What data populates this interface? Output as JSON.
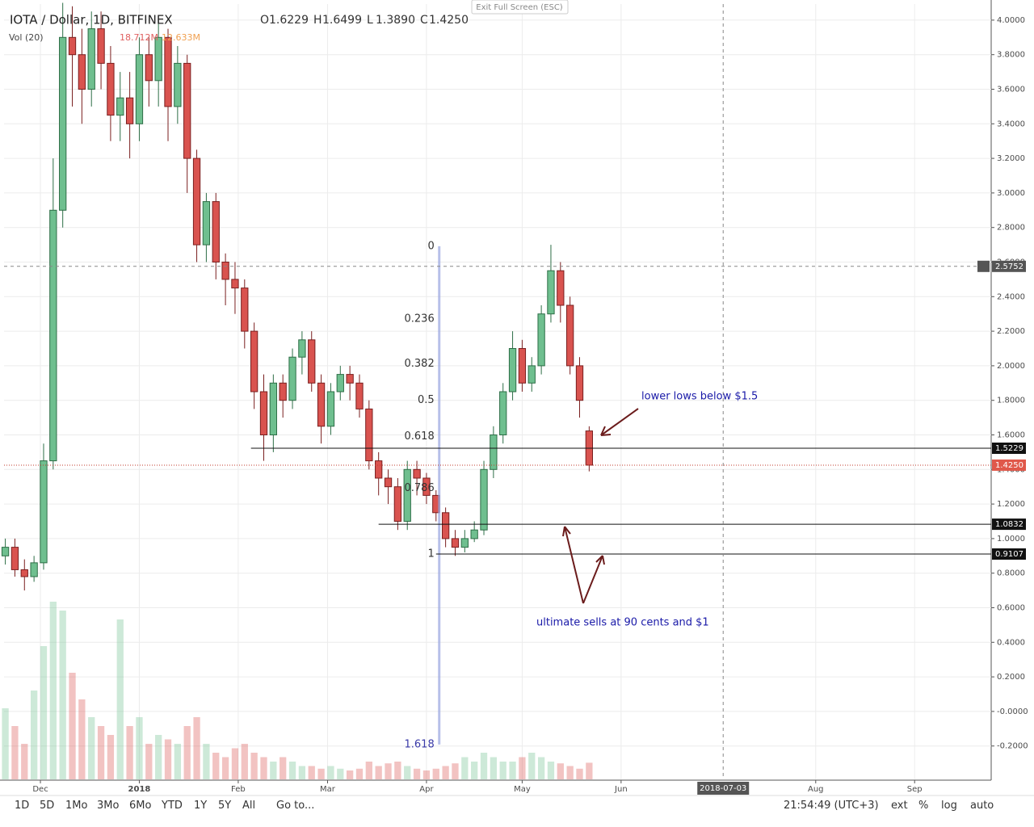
{
  "chart_data": {
    "type": "candlestick",
    "title": "IOTA / Dollar, 1D, BITFINEX",
    "ohlc_header": [
      [
        "O",
        "1.6229"
      ],
      [
        "H",
        "1.6499"
      ],
      [
        "L",
        "1.3890"
      ],
      [
        "C",
        "1.4250"
      ]
    ],
    "volume_title": "Vol (20)",
    "volume_label": "18.712M",
    "volume_ma_label": "12.633M",
    "x": [
      -11,
      -8,
      -5,
      -2,
      1,
      4,
      7,
      10,
      13,
      16,
      19,
      22,
      25,
      28,
      31,
      34,
      37,
      40,
      43,
      46,
      49,
      52,
      55,
      58,
      61,
      64,
      67,
      70,
      73,
      76,
      79,
      82,
      85,
      88,
      91,
      94,
      97,
      100,
      103,
      106,
      109,
      112,
      115,
      118,
      121,
      124,
      127,
      130,
      133,
      136,
      139,
      142,
      145,
      148,
      151,
      154,
      157,
      160,
      163,
      166,
      169,
      172
    ],
    "open": [
      0.9,
      0.95,
      0.82,
      0.78,
      0.86,
      1.45,
      2.9,
      3.9,
      3.8,
      3.6,
      3.95,
      3.75,
      3.45,
      3.55,
      3.4,
      3.8,
      3.65,
      3.9,
      3.5,
      3.75,
      3.2,
      2.7,
      2.95,
      2.6,
      2.5,
      2.45,
      2.2,
      1.85,
      1.6,
      1.9,
      1.8,
      2.05,
      2.15,
      1.9,
      1.65,
      1.85,
      1.95,
      1.9,
      1.75,
      1.45,
      1.35,
      1.3,
      1.1,
      1.4,
      1.35,
      1.25,
      1.15,
      1.0,
      0.95,
      1.0,
      1.05,
      1.4,
      1.6,
      1.85,
      2.1,
      1.9,
      2.0,
      2.3,
      2.55,
      2.35,
      2.0,
      1.6229
    ],
    "high": [
      1.0,
      1.0,
      0.88,
      0.9,
      1.55,
      3.2,
      4.1,
      4.08,
      3.95,
      4.05,
      4.05,
      3.85,
      3.7,
      3.7,
      3.9,
      3.9,
      4.0,
      3.95,
      3.85,
      3.8,
      3.25,
      3.0,
      3.0,
      2.65,
      2.6,
      2.5,
      2.25,
      1.95,
      1.95,
      1.95,
      2.1,
      2.2,
      2.2,
      1.95,
      1.9,
      2.0,
      2.0,
      1.95,
      1.8,
      1.5,
      1.4,
      1.35,
      1.45,
      1.45,
      1.38,
      1.28,
      1.18,
      1.05,
      1.05,
      1.1,
      1.45,
      1.65,
      1.9,
      2.2,
      2.15,
      2.05,
      2.35,
      2.7,
      2.6,
      2.4,
      2.05,
      1.6499
    ],
    "low": [
      0.85,
      0.78,
      0.7,
      0.75,
      0.82,
      1.4,
      2.8,
      3.5,
      3.4,
      3.5,
      3.6,
      3.3,
      3.3,
      3.2,
      3.3,
      3.5,
      3.5,
      3.3,
      3.4,
      3.0,
      2.6,
      2.6,
      2.5,
      2.35,
      2.3,
      2.1,
      1.75,
      1.45,
      1.5,
      1.7,
      1.75,
      1.95,
      1.85,
      1.55,
      1.6,
      1.8,
      1.8,
      1.7,
      1.4,
      1.25,
      1.2,
      1.05,
      1.05,
      1.25,
      1.2,
      1.1,
      0.95,
      0.9,
      0.92,
      0.98,
      1.02,
      1.35,
      1.55,
      1.8,
      1.85,
      1.85,
      1.95,
      2.25,
      2.25,
      1.95,
      1.7,
      1.389
    ],
    "close": [
      0.95,
      0.82,
      0.78,
      0.86,
      1.45,
      2.9,
      3.9,
      3.8,
      3.6,
      3.95,
      3.75,
      3.45,
      3.55,
      3.4,
      3.8,
      3.65,
      3.9,
      3.5,
      3.75,
      3.2,
      2.7,
      2.95,
      2.6,
      2.5,
      2.45,
      2.2,
      1.85,
      1.6,
      1.9,
      1.8,
      2.05,
      2.15,
      1.9,
      1.65,
      1.85,
      1.95,
      1.9,
      1.75,
      1.45,
      1.35,
      1.3,
      1.1,
      1.4,
      1.35,
      1.25,
      1.15,
      1.0,
      0.95,
      1.0,
      1.05,
      1.4,
      1.6,
      1.85,
      2.1,
      1.9,
      2.0,
      2.3,
      2.55,
      2.35,
      2.0,
      1.8,
      1.425
    ],
    "volume": [
      80,
      60,
      40,
      100,
      150,
      200,
      190,
      120,
      90,
      70,
      60,
      50,
      180,
      60,
      70,
      40,
      50,
      45,
      40,
      60,
      70,
      40,
      30,
      25,
      35,
      40,
      30,
      25,
      20,
      25,
      20,
      15,
      15,
      12,
      15,
      12,
      10,
      12,
      20,
      15,
      18,
      20,
      15,
      12,
      10,
      12,
      15,
      18,
      25,
      20,
      30,
      25,
      20,
      20,
      25,
      30,
      25,
      20,
      18,
      15,
      12,
      18.712
    ],
    "vlim": [
      0,
      300
    ],
    "up_color": "#6fbf8f",
    "down_color": "#d9534f",
    "xlim": [
      -11.4,
      298
    ],
    "xticks": [
      {
        "value": 0,
        "label": "Dec"
      },
      {
        "value": 31,
        "label": "2018"
      },
      {
        "value": 62,
        "label": "Feb"
      },
      {
        "value": 90,
        "label": "Mar"
      },
      {
        "value": 121,
        "label": "Apr"
      },
      {
        "value": 151,
        "label": "May"
      },
      {
        "value": 182,
        "label": "Jun"
      },
      {
        "value": 243,
        "label": "Aug"
      },
      {
        "value": 274,
        "label": "Sep"
      }
    ],
    "ylim": [
      -0.393,
      4.093
    ],
    "yticks": [
      {
        "value": 4.0,
        "label": "4.0000"
      },
      {
        "value": 3.8,
        "label": "3.8000"
      },
      {
        "value": 3.6,
        "label": "3.6000"
      },
      {
        "value": 3.4,
        "label": "3.4000"
      },
      {
        "value": 3.2,
        "label": "3.2000"
      },
      {
        "value": 3.0,
        "label": "3.0000"
      },
      {
        "value": 2.8,
        "label": "2.8000"
      },
      {
        "value": 2.6,
        "label": "2.6000"
      },
      {
        "value": 2.4,
        "label": "2.4000"
      },
      {
        "value": 2.2,
        "label": "2.2000"
      },
      {
        "value": 2.0,
        "label": "2.0000"
      },
      {
        "value": 1.8,
        "label": "1.8000"
      },
      {
        "value": 1.6,
        "label": "1.6000"
      },
      {
        "value": 1.4,
        "label": "1.4000"
      },
      {
        "value": 1.2,
        "label": "1.2000"
      },
      {
        "value": 1.0,
        "label": "1.0000"
      },
      {
        "value": 0.8,
        "label": "0.8000"
      },
      {
        "value": 0.6,
        "label": "0.6000"
      },
      {
        "value": 0.4,
        "label": "0.4000"
      },
      {
        "value": 0.2,
        "label": "0.2000"
      },
      {
        "value": 0,
        "label": "-0.0000"
      },
      {
        "value": -0.2,
        "label": "-0.2000"
      }
    ],
    "grid": true,
    "levels": [
      {
        "value": 1.5229,
        "label": "1.5229",
        "from": 66
      },
      {
        "value": 1.0832,
        "label": "1.0832",
        "from": 106
      },
      {
        "value": 0.9107,
        "label": "0.9107",
        "from": 124
      }
    ],
    "last_price": {
      "value": 1.425,
      "label": "1.4250"
    },
    "crosshair": {
      "x": 214,
      "x_label": "2018-07-03",
      "price": {
        "value": 2.5752,
        "label": "2.5752"
      }
    },
    "fib": {
      "x": 125,
      "high": 2.692,
      "low": 0.91,
      "levels": [
        0,
        0.236,
        0.382,
        0.5,
        0.618,
        0.786,
        1,
        1.618
      ]
    },
    "annotations": [
      "lower lows below $1.5",
      "ultimate sells at 90 cents and $1"
    ]
  },
  "toolbar": {
    "ranges": [
      "1D",
      "5D",
      "1Mo",
      "3Mo",
      "6Mo",
      "YTD",
      "1Y",
      "5Y",
      "All"
    ],
    "goto": "Go to...",
    "clock": "21:54:49 (UTC+3)",
    "options": [
      "ext",
      "%",
      "log",
      "auto"
    ]
  },
  "exit_button": "Exit Full Screen (ESC)"
}
